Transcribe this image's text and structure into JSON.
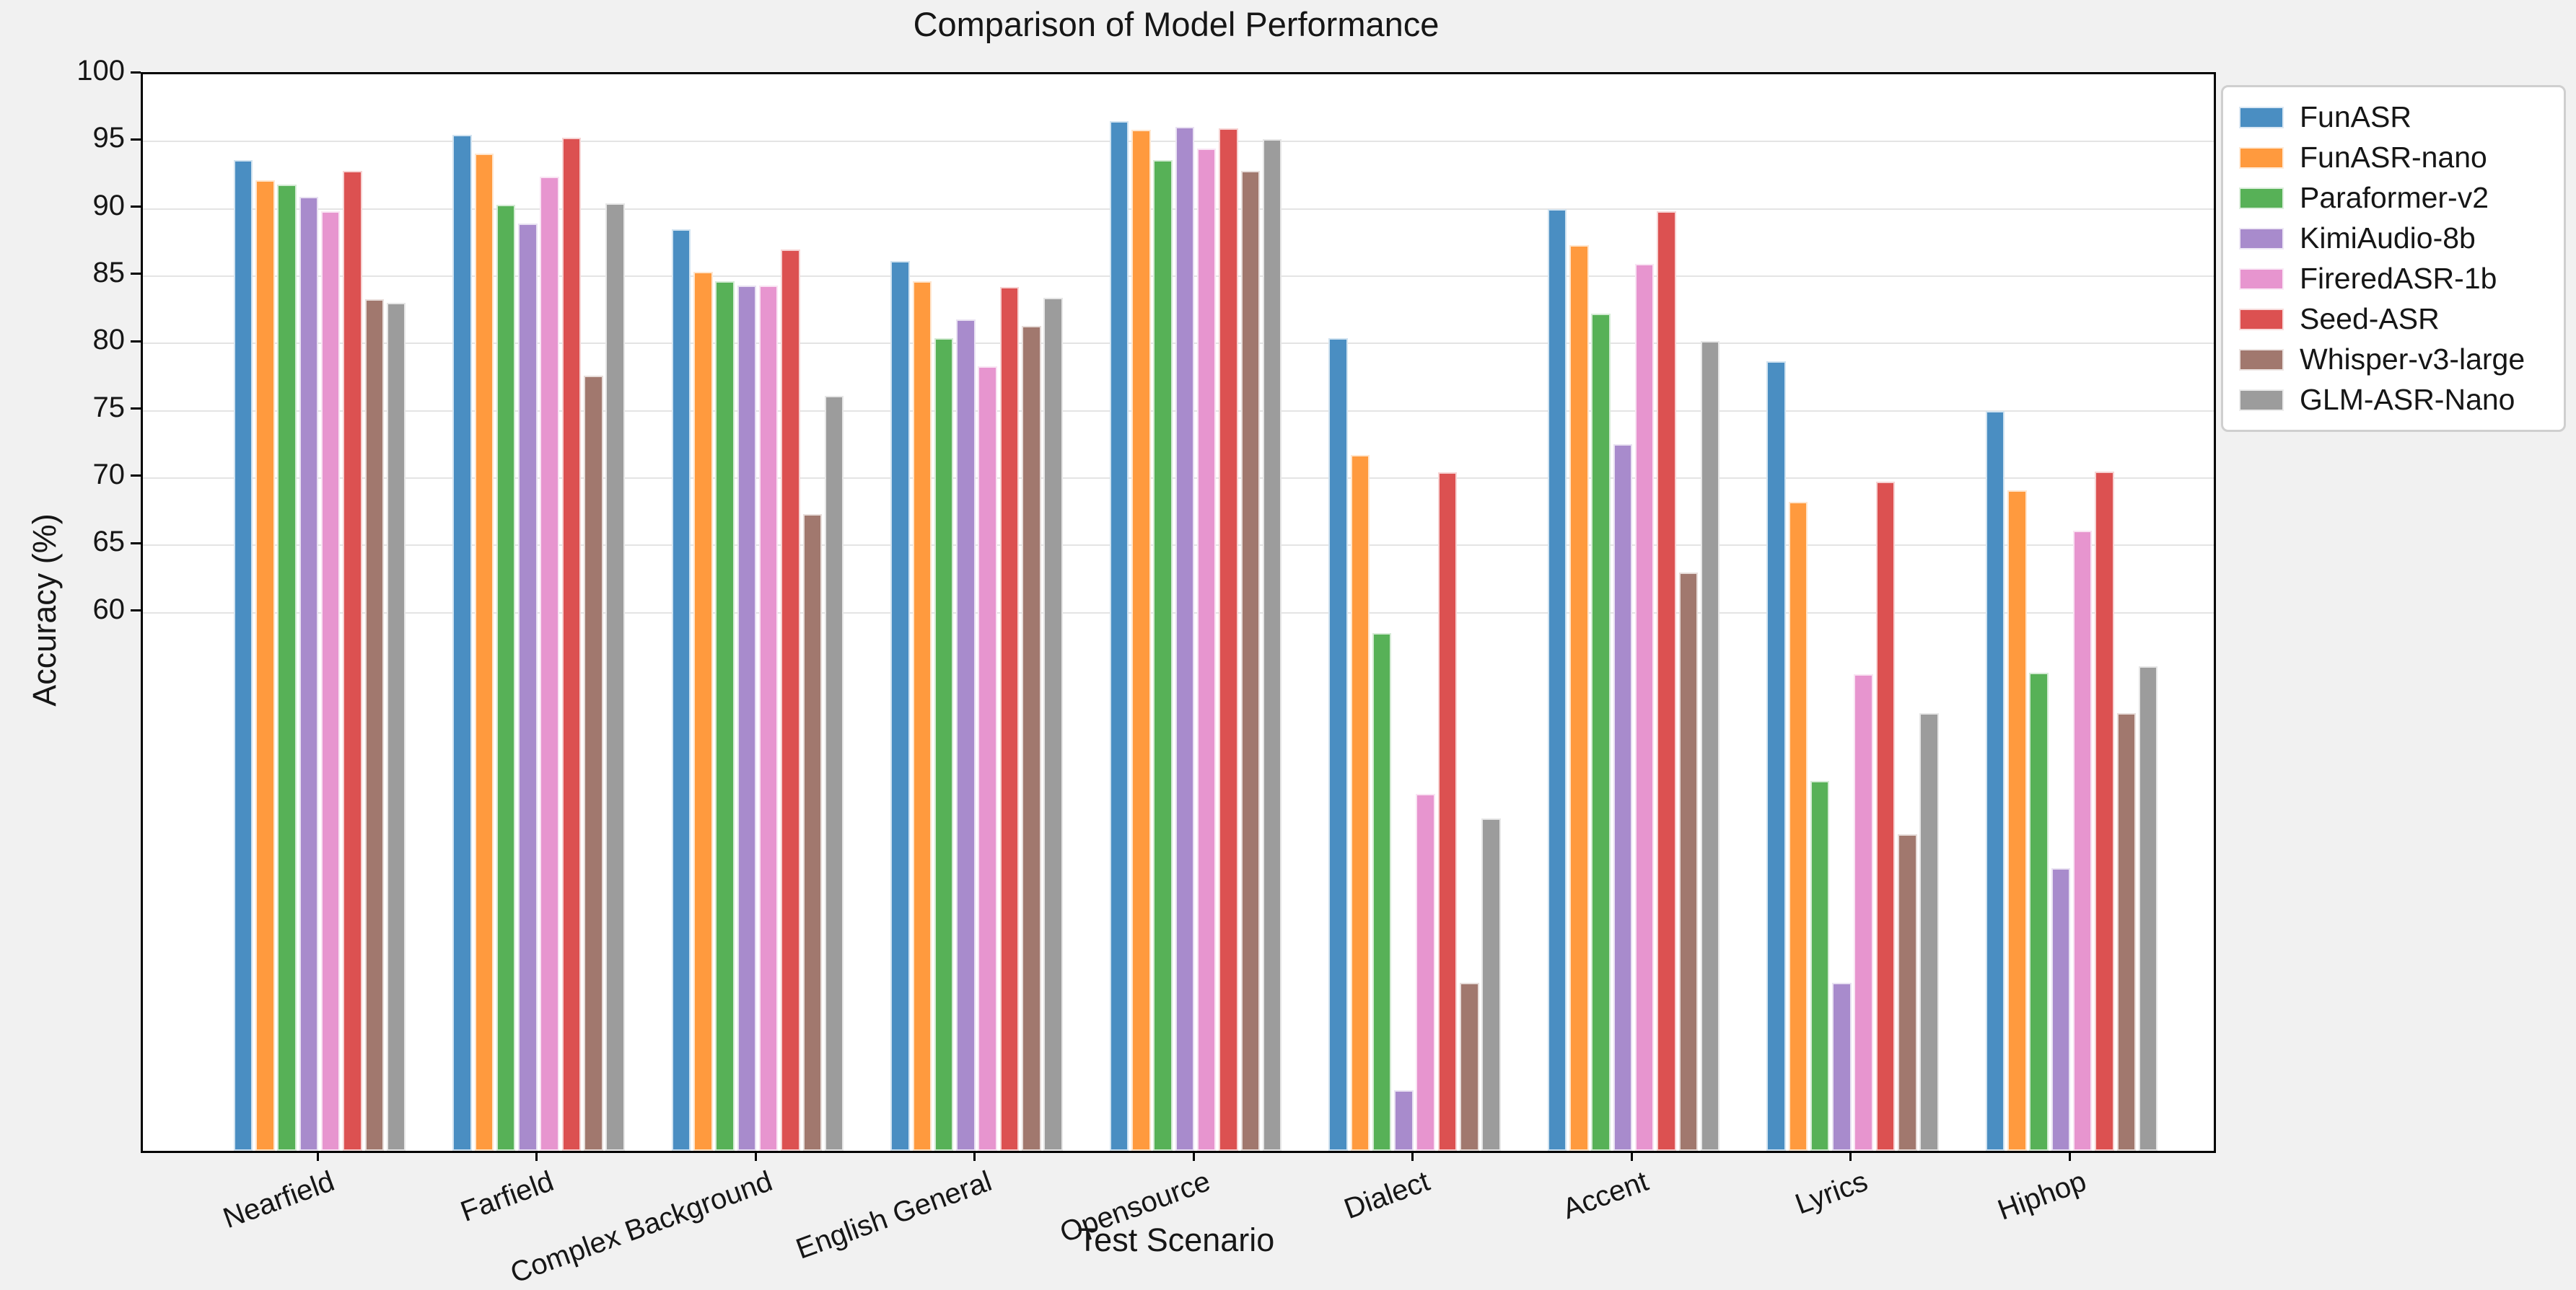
{
  "title": "Comparison of Model Performance",
  "xlabel": "Test Scenario",
  "ylabel": "Accuracy (%)",
  "chart_data": {
    "type": "bar",
    "title": "Comparison of Model Performance",
    "xlabel": "Test Scenario",
    "ylabel": "Accuracy (%)",
    "ylim": [
      20,
      100
    ],
    "yticks": [
      60,
      65,
      70,
      75,
      80,
      85,
      90,
      95,
      100
    ],
    "grid": true,
    "legend_position": "upper right, outside axes",
    "categories": [
      "Nearfield",
      "Farfield",
      "Complex Background",
      "English General",
      "Opensource",
      "Dialect",
      "Accent",
      "Lyrics",
      "Hiphop"
    ],
    "series": [
      {
        "name": "FunASR",
        "color": "#4a8ec2",
        "values": [
          93.6,
          95.5,
          88.5,
          86.1,
          96.5,
          80.4,
          90.0,
          78.7,
          75.0
        ]
      },
      {
        "name": "FunASR-nano",
        "color": "#ff9a3e",
        "values": [
          92.1,
          94.1,
          85.3,
          84.6,
          95.9,
          71.7,
          87.3,
          68.2,
          69.1
        ]
      },
      {
        "name": "Paraformer-v2",
        "color": "#57b157",
        "values": [
          91.8,
          90.3,
          84.6,
          80.4,
          93.6,
          58.5,
          82.2,
          47.5,
          55.5
        ]
      },
      {
        "name": "KimiAudio-8b",
        "color": "#a88bcc",
        "values": [
          90.9,
          88.9,
          84.3,
          81.8,
          96.1,
          24.5,
          72.5,
          32.5,
          41.0
        ]
      },
      {
        "name": "FireredASR-1b",
        "color": "#e795cf",
        "values": [
          89.8,
          92.4,
          84.3,
          78.3,
          94.5,
          46.5,
          85.9,
          55.4,
          66.1
        ]
      },
      {
        "name": "Seed-ASR",
        "color": "#dc5151",
        "values": [
          92.8,
          95.3,
          87.0,
          84.2,
          96.0,
          70.4,
          89.8,
          69.7,
          70.5
        ]
      },
      {
        "name": "Whisper-v3-large",
        "color": "#a1786e",
        "values": [
          83.3,
          77.6,
          67.3,
          81.3,
          92.8,
          32.5,
          63.0,
          43.5,
          52.5
        ]
      },
      {
        "name": "GLM-ASR-Nano",
        "color": "#9c9c9c",
        "values": [
          83.0,
          90.4,
          76.1,
          83.4,
          95.2,
          44.7,
          80.2,
          52.5,
          56.0
        ]
      }
    ]
  },
  "colors": {
    "figure_background": "#f1f1f1",
    "axes_background": "#ffffff",
    "gridline": "#e4e4e4",
    "spine": "#000000",
    "text": "#161616"
  }
}
